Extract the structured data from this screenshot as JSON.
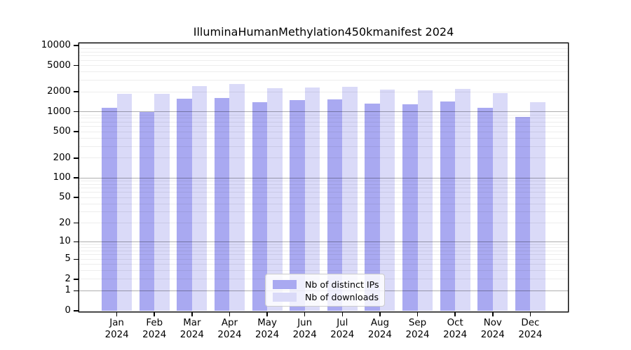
{
  "title": "IlluminaHumanMethylation450kmanifest 2024",
  "chart_data": {
    "type": "bar",
    "title": "IlluminaHumanMethylation450kmanifest 2024",
    "x_months": [
      "Jan",
      "Feb",
      "Mar",
      "Apr",
      "May",
      "Jun",
      "Jul",
      "Aug",
      "Sep",
      "Oct",
      "Nov",
      "Dec"
    ],
    "x_year": "2024",
    "series": [
      {
        "name": "Nb of distinct IPs",
        "color": "#a9a9f1",
        "values": [
          1140,
          990,
          1590,
          1620,
          1400,
          1500,
          1520,
          1330,
          1300,
          1430,
          1150,
          840
        ]
      },
      {
        "name": "Nb of downloads",
        "color": "#dadaf8",
        "values": [
          1870,
          1850,
          2440,
          2630,
          2270,
          2320,
          2380,
          2160,
          2130,
          2210,
          1900,
          1400
        ]
      }
    ],
    "y_ticks": [
      0,
      1,
      2,
      5,
      10,
      20,
      50,
      100,
      200,
      500,
      1000,
      2000,
      5000,
      10000
    ],
    "y_scale": "log1p",
    "ylim": [
      0,
      10000
    ],
    "grid": true,
    "legend_position": "lower center",
    "colors": {
      "major_grid": "#aeaeae",
      "minor_grid": "#ededed",
      "axis": "#000000"
    }
  }
}
